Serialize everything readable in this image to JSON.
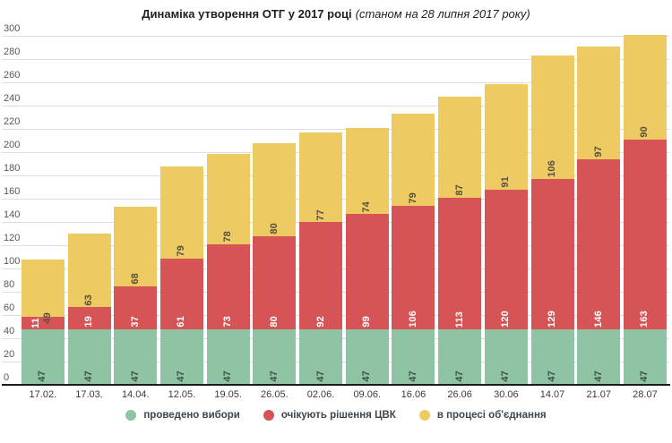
{
  "title": {
    "main": "Динаміка утворення ОТГ у 2017 році",
    "subtitle": "(станом на 28 липня 2017 року)"
  },
  "chart_data": {
    "type": "bar",
    "stacked": true,
    "title": "Динаміка утворення ОТГ у 2017 році (станом на 28 липня 2017 року)",
    "categories": [
      "17.02.",
      "17.03.",
      "14.04.",
      "12.05.",
      "19.05.",
      "26.05.",
      "02.06.",
      "09.06.",
      "16.06",
      "26.06",
      "30.06",
      "14.07",
      "21.07",
      "28.07"
    ],
    "series": [
      {
        "name": "проведено вибори",
        "color": "#8ec3a4",
        "label_color": "#3d4f49",
        "values": [
          47,
          47,
          47,
          47,
          47,
          47,
          47,
          47,
          47,
          47,
          47,
          47,
          47,
          47
        ]
      },
      {
        "name": "очікують рішення ЦВК",
        "color": "#d65456",
        "label_color": "#ffffff",
        "values": [
          11,
          19,
          37,
          61,
          73,
          80,
          92,
          99,
          106,
          113,
          120,
          129,
          146,
          163
        ]
      },
      {
        "name": "в процесі об'єднання",
        "color": "#eeca63",
        "label_color": "#57503c",
        "values": [
          49,
          63,
          68,
          79,
          78,
          80,
          77,
          74,
          79,
          87,
          91,
          106,
          97,
          90
        ]
      }
    ],
    "ylim": [
      0,
      300
    ],
    "ytick_step": 20,
    "grid": true,
    "legend_position": "bottom",
    "annotations": "segment values, rotated 90deg, at bottom of each segment"
  }
}
